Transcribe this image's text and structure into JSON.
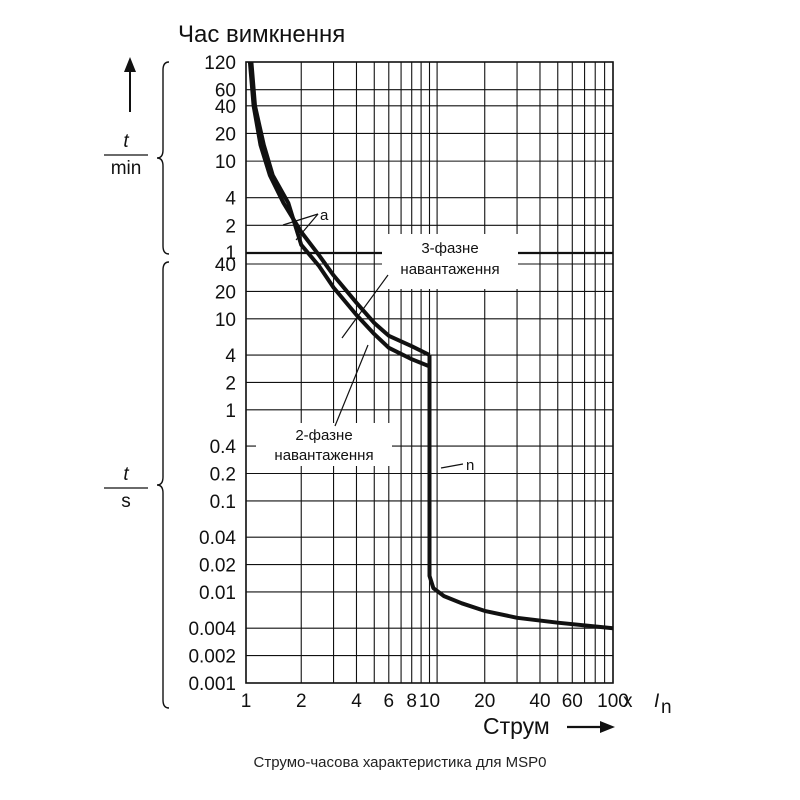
{
  "chart_data": {
    "type": "line",
    "title": "Час вимкнення",
    "xlabel": "Струм",
    "x_suffix": "x",
    "x_unit_symbol": "I",
    "x_unit_subscript": "n",
    "x_scale": "log",
    "xlim": [
      1,
      100
    ],
    "x_ticks": [
      1,
      2,
      4,
      6,
      8,
      10,
      20,
      40,
      60,
      100
    ],
    "x_tick_labels": [
      "1",
      "2",
      "4",
      "6",
      "8",
      "10",
      "20",
      "40",
      "60",
      "100"
    ],
    "y_scale": "log",
    "y_units": {
      "minutes": {
        "label_top": "t",
        "label_bottom": "min",
        "range": [
          1,
          120
        ],
        "ticks": [
          1,
          2,
          4,
          10,
          20,
          40,
          60,
          120
        ],
        "tick_labels": [
          "1",
          "2",
          "4",
          "10",
          "20",
          "40",
          "60",
          "120"
        ]
      },
      "seconds": {
        "label_top": "t",
        "label_bottom": "s",
        "range": [
          0.001,
          40
        ],
        "ticks": [
          0.001,
          0.002,
          0.004,
          0.01,
          0.02,
          0.04,
          0.1,
          0.2,
          0.4,
          1,
          2,
          4,
          10,
          20,
          40
        ],
        "tick_labels": [
          "0.001",
          "0.002",
          "0.004",
          "0.01",
          "0.02",
          "0.04",
          "0.1",
          "0.2",
          "0.4",
          "1",
          "2",
          "4",
          "10",
          "20",
          "40"
        ]
      }
    },
    "grid": true,
    "series": [
      {
        "name": "3-фазне навантаження",
        "points": [
          {
            "x": 1.05,
            "t": "120 min"
          },
          {
            "x": 1.1,
            "t": "40 min"
          },
          {
            "x": 1.2,
            "t": "15 min"
          },
          {
            "x": 1.35,
            "t": "7 min"
          },
          {
            "x": 1.6,
            "t": "3.5 min"
          },
          {
            "x": 2,
            "t": "90 s"
          },
          {
            "x": 2.5,
            "t": "50 s"
          },
          {
            "x": 3,
            "t": "30 s"
          },
          {
            "x": 4,
            "t": "15 s"
          },
          {
            "x": 5,
            "t": "9 s"
          },
          {
            "x": 6,
            "t": "6.5 s"
          },
          {
            "x": 8,
            "t": "5 s"
          },
          {
            "x": 10,
            "t": "4 s"
          }
        ]
      },
      {
        "name": "2-фазне навантаження",
        "points": [
          {
            "x": 1.07,
            "t": "120 min"
          },
          {
            "x": 1.12,
            "t": "40 min"
          },
          {
            "x": 1.25,
            "t": "15 min"
          },
          {
            "x": 1.4,
            "t": "7 min"
          },
          {
            "x": 1.7,
            "t": "3.5 min"
          },
          {
            "x": 2,
            "t": "65 s"
          },
          {
            "x": 2.5,
            "t": "38 s"
          },
          {
            "x": 3,
            "t": "22 s"
          },
          {
            "x": 4,
            "t": "11 s"
          },
          {
            "x": 5,
            "t": "6.8 s"
          },
          {
            "x": 6,
            "t": "4.8 s"
          },
          {
            "x": 8,
            "t": "3.6 s"
          },
          {
            "x": 10,
            "t": "3 s"
          }
        ]
      },
      {
        "name": "n",
        "points": [
          {
            "x": 10,
            "t": "4 s"
          },
          {
            "x": 10,
            "t": "0.015 s"
          },
          {
            "x": 10.5,
            "t": "0.011 s"
          },
          {
            "x": 12,
            "t": "0.009 s"
          },
          {
            "x": 15,
            "t": "0.0075 s"
          },
          {
            "x": 20,
            "t": "0.0062 s"
          },
          {
            "x": 30,
            "t": "0.0052 s"
          },
          {
            "x": 50,
            "t": "0.0046 s"
          },
          {
            "x": 100,
            "t": "0.004 s"
          }
        ]
      }
    ],
    "annotations": [
      "a",
      "n",
      "3-фазне навантаження",
      "2-фазне навантаження"
    ],
    "label_a": "a",
    "label_n": "n",
    "label_3phase_line1": "3-фазне",
    "label_3phase_line2": "навантаження",
    "label_2phase_line1": "2-фазне",
    "label_2phase_line2": "навантаження"
  },
  "caption": "Струмо-часова характеристика для MSP0"
}
